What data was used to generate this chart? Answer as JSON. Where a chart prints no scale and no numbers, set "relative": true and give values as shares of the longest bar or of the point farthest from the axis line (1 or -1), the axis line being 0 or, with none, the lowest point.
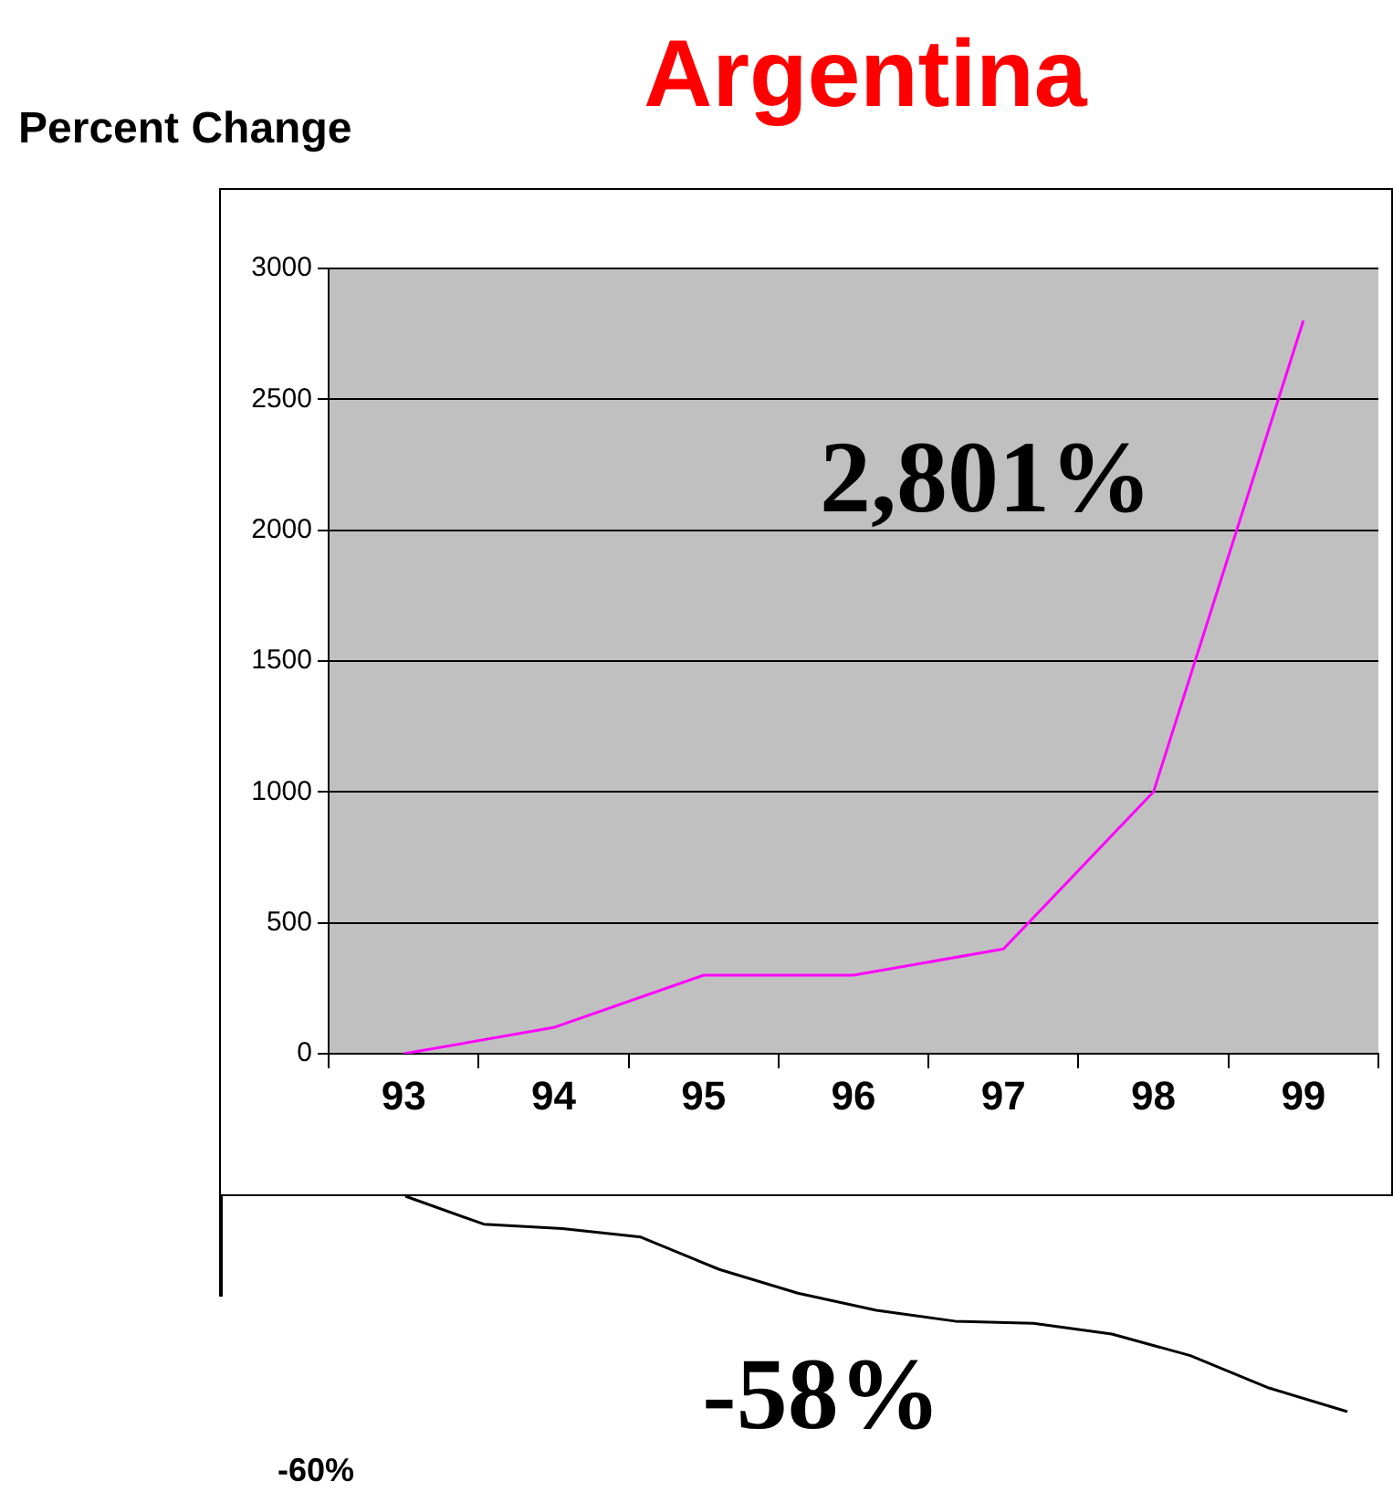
{
  "chart_data": [
    {
      "type": "line",
      "title": "Argentina",
      "ylabel": "Percent Change",
      "categories": [
        "93",
        "94",
        "95",
        "96",
        "97",
        "98",
        "99"
      ],
      "series": [
        {
          "color": "#ff00ff",
          "values": [
            0,
            100,
            300,
            300,
            400,
            1000,
            2801
          ]
        }
      ],
      "ylim": [
        0,
        3000
      ],
      "yticks": [
        0,
        500,
        1000,
        1500,
        2000,
        2500,
        3000
      ],
      "grid": "y",
      "legend": false,
      "marker": "none",
      "annotations": [
        "2,801%"
      ]
    },
    {
      "type": "line",
      "relative": true,
      "categories": [
        null,
        null,
        null,
        null,
        null,
        null,
        null,
        null,
        null,
        null,
        null,
        null,
        null
      ],
      "series": [
        {
          "color": "#000000",
          "values": [
            1,
            0.87,
            0.85,
            0.81,
            0.66,
            0.55,
            0.47,
            0.42,
            0.41,
            0.36,
            0.26,
            0.11,
            0
          ]
        }
      ],
      "legend": false,
      "marker": "none",
      "annotations": [
        "-58%",
        "-60%"
      ]
    }
  ]
}
